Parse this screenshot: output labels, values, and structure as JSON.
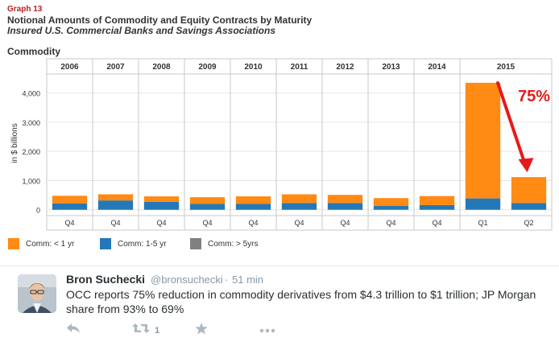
{
  "header": {
    "graph_number": "Graph 13",
    "title": "Notional Amounts of Commodity and Equity Contracts by Maturity",
    "subtitle": "Insured U.S. Commercial Banks and Savings Associations",
    "section": "Commodity"
  },
  "chart_data": {
    "type": "bar",
    "stacked": true,
    "years": [
      "2006",
      "2007",
      "2008",
      "2009",
      "2010",
      "2011",
      "2012",
      "2013",
      "2014",
      "2015"
    ],
    "categories": [
      "Q4",
      "Q4",
      "Q4",
      "Q4",
      "Q4",
      "Q4",
      "Q4",
      "Q4",
      "Q4",
      "Q1",
      "Q2"
    ],
    "year_of_category": [
      "2006",
      "2007",
      "2008",
      "2009",
      "2010",
      "2011",
      "2012",
      "2013",
      "2014",
      "2015",
      "2015"
    ],
    "series": [
      {
        "name": "Comm: > 5yrs",
        "values": [
          0,
          0,
          0,
          0,
          0,
          0,
          0,
          0,
          0,
          0,
          0
        ],
        "color": "#808080"
      },
      {
        "name": "Comm: 1-5 yr",
        "values": [
          220,
          320,
          270,
          200,
          200,
          230,
          230,
          130,
          160,
          390,
          230
        ],
        "color": "#2478b8"
      },
      {
        "name": "Comm: < 1 yr",
        "values": [
          260,
          210,
          190,
          230,
          260,
          300,
          280,
          270,
          310,
          3960,
          890
        ],
        "color": "#ff8a14"
      }
    ],
    "ylabel": "in $ billions",
    "yticks": [
      0,
      1000,
      2000,
      3000,
      4000
    ],
    "ytick_labels": [
      "0",
      "1,000",
      "2,000",
      "3,000",
      "4,000"
    ],
    "ylim": [
      -200,
      4650
    ],
    "annotation": {
      "text": "75%",
      "color": "#e41b1b"
    },
    "grid": true,
    "legend": "bottom"
  },
  "legend_items": [
    {
      "label": "Comm: < 1 yr",
      "color": "#ff8a14"
    },
    {
      "label": "Comm: 1-5 yr",
      "color": "#2478b8"
    },
    {
      "label": "Comm: > 5yrs",
      "color": "#808080"
    }
  ],
  "tweet": {
    "name": "Bron Suchecki",
    "handle": "@bronsuchecki",
    "separator": "·",
    "time": "51 min",
    "text": "OCC reports 75% reduction in commodity derivatives from $4.3 trillion to $1 trillion; JP Morgan share from 93% to 69%",
    "retweet_count": "1",
    "icons": [
      "reply-icon",
      "retweet-icon",
      "favorite-icon",
      "more-icon"
    ]
  }
}
